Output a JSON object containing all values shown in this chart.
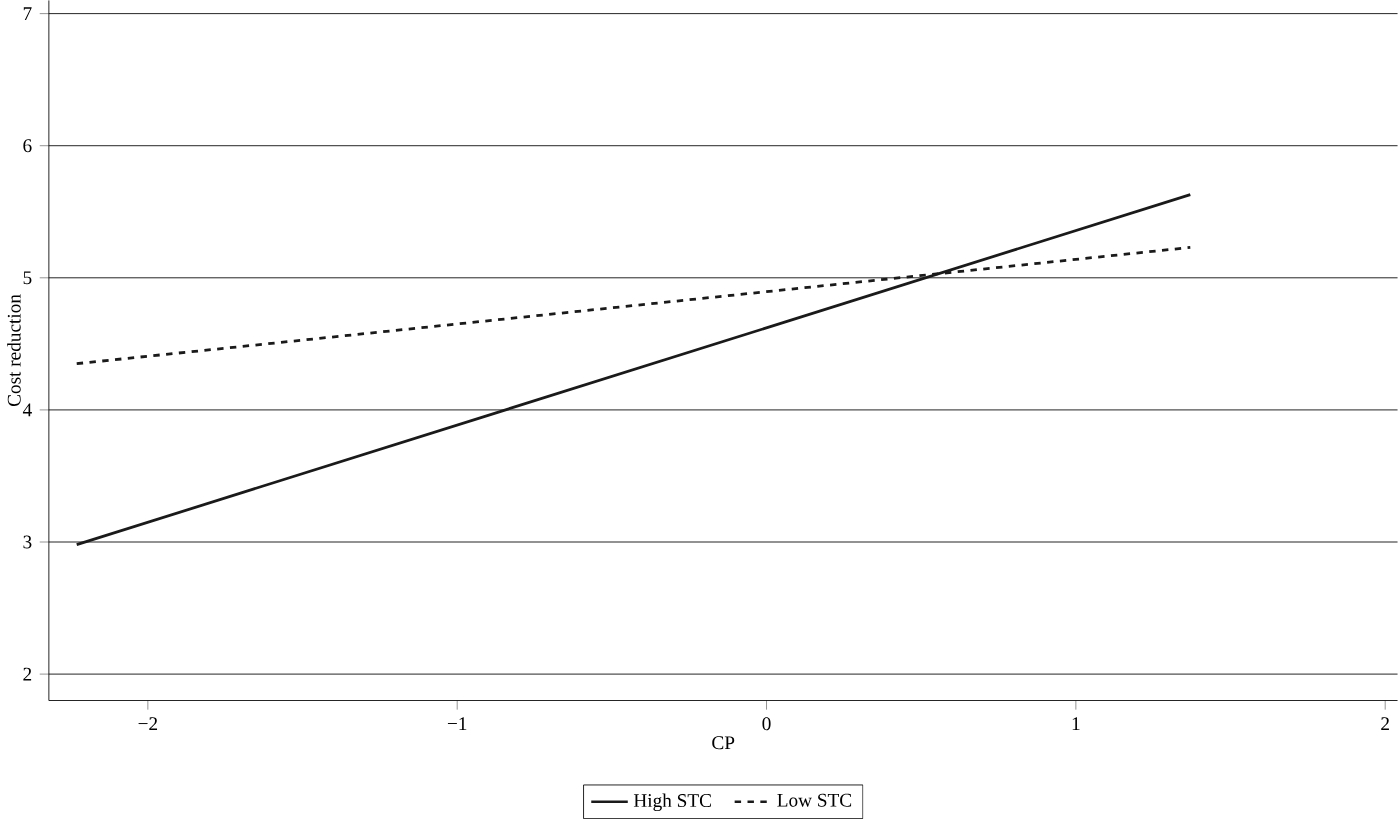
{
  "chart_data": {
    "type": "line",
    "xlabel": "CP",
    "ylabel": "Cost reduction",
    "x": [
      -2.23,
      1.37
    ],
    "series": [
      {
        "name": "High STC",
        "color": "#1a1a1a",
        "values": [
          2.98,
          5.63
        ],
        "line_style": "solid"
      },
      {
        "name": "Low STC",
        "color": "#1a1a1a",
        "values": [
          4.35,
          5.23
        ],
        "line_style": "dashed"
      }
    ],
    "xlim": [
      -2.32,
      2.04
    ],
    "ylim": [
      1.8,
      7.1
    ],
    "xticks": [
      {
        "value": -2,
        "label": "−2"
      },
      {
        "value": -1,
        "label": "−1"
      },
      0,
      1,
      2
    ],
    "yticks": [
      2,
      3,
      4,
      5,
      6,
      7
    ],
    "grid": "y",
    "legend": "bottom",
    "marker": "none"
  }
}
